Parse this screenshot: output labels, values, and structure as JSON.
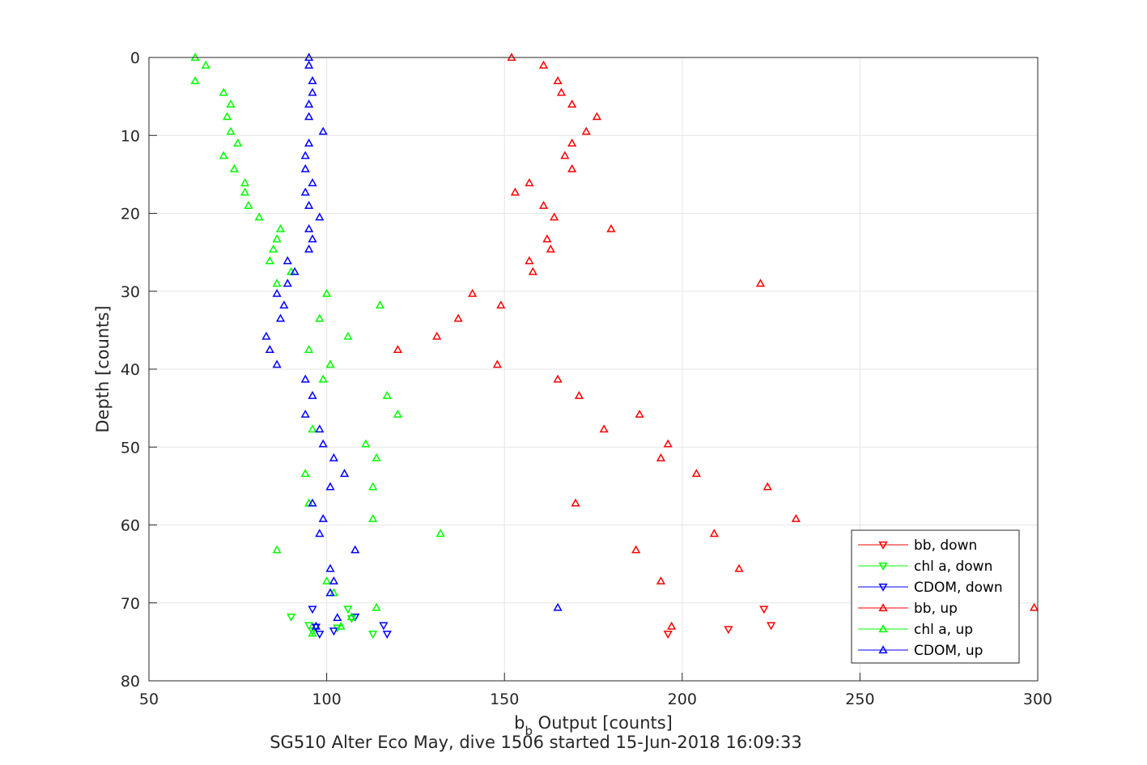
{
  "chart_data": {
    "type": "scatter",
    "title": "SG510 Alter Eco May, dive 1506 started 15-Jun-2018 16:09:33",
    "xlabel": {
      "main": "b",
      "subscript": "b",
      "rest": " Output [counts]"
    },
    "ylabel": "Depth [counts]",
    "xlim": [
      50,
      300
    ],
    "ylim": [
      0,
      80
    ],
    "y_reversed": true,
    "grid": true,
    "xticks": [
      50,
      100,
      150,
      200,
      250,
      300
    ],
    "yticks": [
      0,
      10,
      20,
      30,
      40,
      50,
      60,
      70,
      80
    ],
    "legend_position": "bottom-right",
    "series": [
      {
        "name": "bb, down",
        "color": "#ff0000",
        "marker": "triangle-down",
        "points": [
          [
            196,
            74.0
          ],
          [
            213,
            73.4
          ],
          [
            225,
            72.9
          ],
          [
            223,
            70.8
          ]
        ]
      },
      {
        "name": "chl a, down",
        "color": "#00ff00",
        "marker": "triangle-down",
        "points": [
          [
            90,
            71.8
          ],
          [
            95,
            72.9
          ],
          [
            96,
            73.6
          ],
          [
            103,
            73.2
          ],
          [
            107,
            72.0
          ],
          [
            106,
            70.8
          ],
          [
            113,
            74.0
          ]
        ]
      },
      {
        "name": "CDOM, down",
        "color": "#0000ff",
        "marker": "triangle-down",
        "points": [
          [
            96,
            70.8
          ],
          [
            97,
            73.1
          ],
          [
            98,
            74.0
          ],
          [
            102,
            73.6
          ],
          [
            108,
            71.8
          ],
          [
            116,
            72.9
          ],
          [
            117,
            74.0
          ]
        ]
      },
      {
        "name": "bb, up",
        "color": "#ff0000",
        "marker": "triangle-up",
        "points": [
          [
            152,
            0.0
          ],
          [
            161,
            1.0
          ],
          [
            165,
            3.0
          ],
          [
            166,
            4.5
          ],
          [
            169,
            6.0
          ],
          [
            176,
            7.6
          ],
          [
            173,
            9.5
          ],
          [
            169,
            11.0
          ],
          [
            167,
            12.6
          ],
          [
            169,
            14.3
          ],
          [
            157,
            16.1
          ],
          [
            153,
            17.3
          ],
          [
            161,
            19.0
          ],
          [
            164,
            20.5
          ],
          [
            180,
            22.0
          ],
          [
            162,
            23.3
          ],
          [
            163,
            24.6
          ],
          [
            157,
            26.1
          ],
          [
            158,
            27.5
          ],
          [
            222,
            29.0
          ],
          [
            141,
            30.3
          ],
          [
            149,
            31.8
          ],
          [
            137,
            33.5
          ],
          [
            131,
            35.8
          ],
          [
            120,
            37.5
          ],
          [
            148,
            39.4
          ],
          [
            165,
            41.3
          ],
          [
            171,
            43.4
          ],
          [
            188,
            45.8
          ],
          [
            178,
            47.7
          ],
          [
            196,
            49.6
          ],
          [
            194,
            51.4
          ],
          [
            204,
            53.4
          ],
          [
            224,
            55.1
          ],
          [
            170,
            57.2
          ],
          [
            232,
            59.2
          ],
          [
            209,
            61.1
          ],
          [
            187,
            63.2
          ],
          [
            216,
            65.6
          ],
          [
            194,
            67.2
          ],
          [
            299,
            70.6
          ],
          [
            197,
            73.0
          ]
        ]
      },
      {
        "name": "chl a, up",
        "color": "#00ff00",
        "marker": "triangle-up",
        "points": [
          [
            63,
            0.0
          ],
          [
            66,
            1.0
          ],
          [
            63,
            3.0
          ],
          [
            71,
            4.5
          ],
          [
            73,
            6.0
          ],
          [
            72,
            7.6
          ],
          [
            73,
            9.5
          ],
          [
            75,
            11.0
          ],
          [
            71,
            12.6
          ],
          [
            74,
            14.3
          ],
          [
            77,
            16.1
          ],
          [
            77,
            17.3
          ],
          [
            78,
            19.0
          ],
          [
            81,
            20.5
          ],
          [
            87,
            22.0
          ],
          [
            86,
            23.3
          ],
          [
            85,
            24.6
          ],
          [
            84,
            26.1
          ],
          [
            90,
            27.5
          ],
          [
            86,
            29.0
          ],
          [
            100,
            30.3
          ],
          [
            115,
            31.8
          ],
          [
            98,
            33.5
          ],
          [
            106,
            35.8
          ],
          [
            95,
            37.5
          ],
          [
            101,
            39.4
          ],
          [
            99,
            41.3
          ],
          [
            117,
            43.4
          ],
          [
            120,
            45.8
          ],
          [
            96,
            47.7
          ],
          [
            111,
            49.6
          ],
          [
            114,
            51.4
          ],
          [
            94,
            53.4
          ],
          [
            113,
            55.1
          ],
          [
            95,
            57.2
          ],
          [
            113,
            59.2
          ],
          [
            132,
            61.1
          ],
          [
            86,
            63.2
          ],
          [
            100,
            67.2
          ],
          [
            102,
            68.7
          ],
          [
            114,
            70.6
          ],
          [
            107,
            71.8
          ],
          [
            104,
            73.0
          ],
          [
            96,
            73.9
          ]
        ]
      },
      {
        "name": "CDOM, up",
        "color": "#0000ff",
        "marker": "triangle-up",
        "points": [
          [
            95,
            0.0
          ],
          [
            95,
            1.0
          ],
          [
            96,
            3.0
          ],
          [
            96,
            4.5
          ],
          [
            95,
            6.0
          ],
          [
            95,
            7.6
          ],
          [
            99,
            9.5
          ],
          [
            95,
            11.0
          ],
          [
            94,
            12.6
          ],
          [
            94,
            14.3
          ],
          [
            96,
            16.1
          ],
          [
            94,
            17.3
          ],
          [
            95,
            19.0
          ],
          [
            98,
            20.5
          ],
          [
            95,
            22.0
          ],
          [
            96,
            23.3
          ],
          [
            95,
            24.6
          ],
          [
            89,
            26.1
          ],
          [
            91,
            27.5
          ],
          [
            89,
            29.0
          ],
          [
            86,
            30.3
          ],
          [
            88,
            31.8
          ],
          [
            87,
            33.5
          ],
          [
            83,
            35.8
          ],
          [
            84,
            37.5
          ],
          [
            86,
            39.4
          ],
          [
            94,
            41.3
          ],
          [
            96,
            43.4
          ],
          [
            94,
            45.8
          ],
          [
            98,
            47.7
          ],
          [
            99,
            49.6
          ],
          [
            102,
            51.4
          ],
          [
            105,
            53.4
          ],
          [
            101,
            55.1
          ],
          [
            96,
            57.2
          ],
          [
            99,
            59.2
          ],
          [
            98,
            61.1
          ],
          [
            108,
            63.2
          ],
          [
            101,
            65.6
          ],
          [
            102,
            67.2
          ],
          [
            101,
            68.7
          ],
          [
            165,
            70.6
          ],
          [
            103,
            71.9
          ],
          [
            97,
            73.0
          ]
        ]
      }
    ]
  }
}
